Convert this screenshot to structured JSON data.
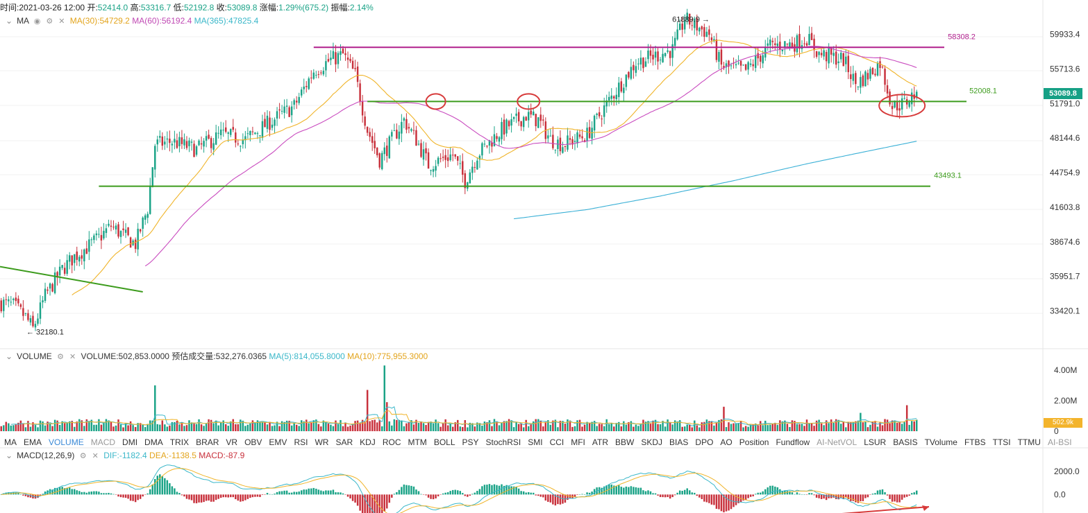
{
  "info_bar": {
    "time_label": "时间:",
    "time": "2021-03-26 12:00",
    "open_label": "开:",
    "open": "52414.0",
    "high_label": "高:",
    "high": "53316.7",
    "low_label": "低:",
    "low": "52192.8",
    "close_label": "收:",
    "close": "53089.8",
    "change_label": "涨幅:",
    "change": "1.29%(675.2)",
    "amp_label": "振幅:",
    "amp": "2.14%"
  },
  "ma_bar": {
    "name": "MA",
    "ma30": "MA(30):54729.2",
    "ma60": "MA(60):56192.4",
    "ma365": "MA(365):47825.4"
  },
  "volume_bar": {
    "name": "VOLUME",
    "volume": "VOLUME:502,853.0000",
    "forecast": "预估成交量:532,276.0365",
    "ma5": "MA(5):814,055.8000",
    "ma10": "MA(10):775,955.3000"
  },
  "macd_bar": {
    "name": "MACD(12,26,9)",
    "dif": "DIF:-1182.4",
    "dea": "DEA:-1138.5",
    "macd": "MACD:-87.9"
  },
  "price_axis": [
    "59933.4",
    "55713.6",
    "51791.0",
    "48144.6",
    "44754.9",
    "41603.8",
    "38674.6",
    "35951.7",
    "33420.1"
  ],
  "volume_axis": [
    "4.00M",
    "2.00M",
    "0"
  ],
  "macd_axis": [
    "2000.0",
    "0.0"
  ],
  "current_price_tag": "53089.8",
  "volume_tag": "502.9k",
  "annotations": {
    "high_marker": "61889.9",
    "low_marker": "32180.1",
    "resist_level": "58308.2",
    "mid_level": "52008.1",
    "support_level": "43493.1"
  },
  "indicator_tabs": [
    "MA",
    "EMA",
    "VOLUME",
    "MACD",
    "DMI",
    "DMA",
    "TRIX",
    "BRAR",
    "VR",
    "OBV",
    "EMV",
    "RSI",
    "WR",
    "SAR",
    "KDJ",
    "ROC",
    "MTM",
    "BOLL",
    "PSY",
    "StochRSI",
    "SMI",
    "CCI",
    "MFI",
    "ATR",
    "BBW",
    "SKDJ",
    "BIAS",
    "DPO",
    "AO",
    "Position",
    "Fundflow",
    "AI-NetVOL",
    "LSUR",
    "BASIS",
    "TVolume",
    "FTBS",
    "TTSI",
    "TTMU",
    "AI-BSI"
  ],
  "active_tab": "VOLUME",
  "dim_tabs": [
    "MACD",
    "AI-NetVOL",
    "AI-BSI"
  ],
  "colors": {
    "up": "#1aa387",
    "down": "#c8303b",
    "ma30": "#f0b429",
    "ma60": "#c94bbf",
    "ma365": "#3ab0d6",
    "resist": "#b01e8c",
    "support": "#3c9b1c",
    "circle": "#d73a3a"
  },
  "chart_data": {
    "type": "candlestick",
    "y_scale": "log",
    "ylim": [
      31000,
      63500
    ],
    "ohlc_anchor_path": [
      [
        0,
        34000
      ],
      [
        5,
        33800
      ],
      [
        10,
        33000
      ],
      [
        13,
        32180.1
      ],
      [
        18,
        34500
      ],
      [
        25,
        36500
      ],
      [
        30,
        37500
      ],
      [
        35,
        38200
      ],
      [
        40,
        39000
      ],
      [
        45,
        40000
      ],
      [
        50,
        39200
      ],
      [
        55,
        38500
      ],
      [
        60,
        41500
      ],
      [
        63,
        47500
      ],
      [
        70,
        47800
      ],
      [
        80,
        47000
      ],
      [
        90,
        48500
      ],
      [
        100,
        48000
      ],
      [
        110,
        49800
      ],
      [
        120,
        51500
      ],
      [
        128,
        55500
      ],
      [
        135,
        56800
      ],
      [
        140,
        57400
      ],
      [
        145,
        55000
      ],
      [
        150,
        49000
      ],
      [
        155,
        46000
      ],
      [
        165,
        50000
      ],
      [
        170,
        48000
      ],
      [
        175,
        45500
      ],
      [
        185,
        46500
      ],
      [
        190,
        44000
      ],
      [
        195,
        46500
      ],
      [
        205,
        49000
      ],
      [
        215,
        50500
      ],
      [
        220,
        50000
      ],
      [
        225,
        48000
      ],
      [
        230,
        47500
      ],
      [
        240,
        48500
      ],
      [
        245,
        50500
      ],
      [
        250,
        52500
      ],
      [
        260,
        56500
      ],
      [
        270,
        57500
      ],
      [
        275,
        58000
      ],
      [
        280,
        61889.9
      ],
      [
        290,
        60000
      ],
      [
        295,
        56000
      ],
      [
        305,
        55500
      ],
      [
        315,
        58500
      ],
      [
        325,
        58800
      ],
      [
        330,
        59500
      ],
      [
        335,
        57500
      ],
      [
        345,
        56800
      ],
      [
        350,
        54000
      ],
      [
        355,
        55000
      ],
      [
        360,
        56500
      ],
      [
        365,
        51500
      ],
      [
        370,
        51800
      ],
      [
        375,
        53089.8
      ]
    ],
    "candle_count": 376,
    "ma365_anchor_path": [
      [
        210,
        40600
      ],
      [
        240,
        41400
      ],
      [
        270,
        42600
      ],
      [
        300,
        44000
      ],
      [
        330,
        45600
      ],
      [
        375,
        47825.4
      ]
    ],
    "volume_spikes": [
      [
        63,
        3.0
      ],
      [
        150,
        2.7
      ],
      [
        157,
        4.3
      ],
      [
        158,
        1.9
      ],
      [
        296,
        1.6
      ],
      [
        352,
        1.2
      ],
      [
        371,
        1.7
      ]
    ],
    "macd_range": [
      -1600,
      3200
    ]
  }
}
